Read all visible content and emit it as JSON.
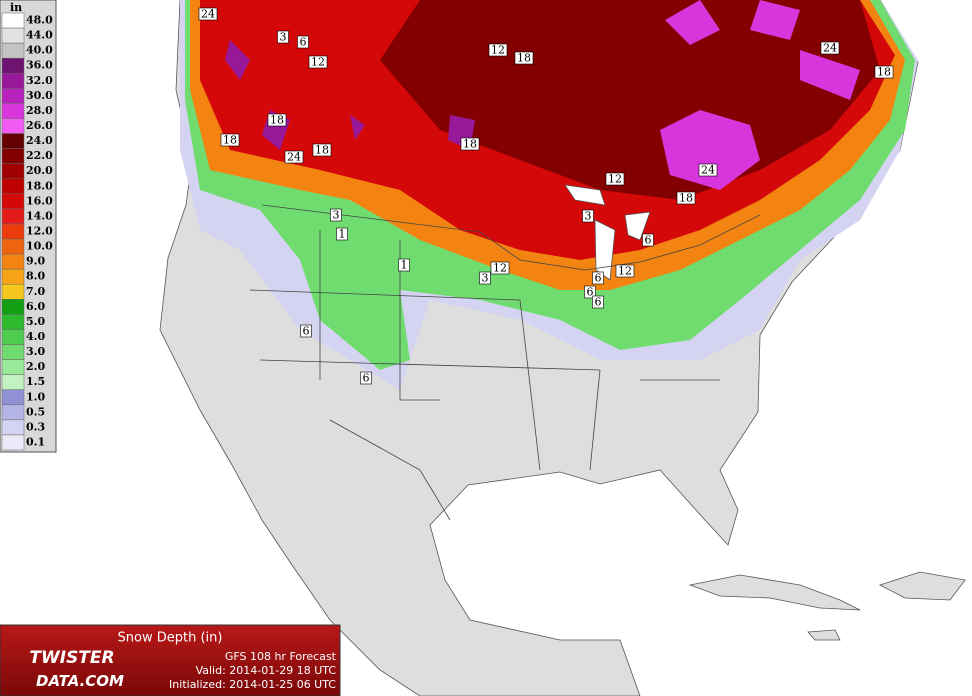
{
  "legend": {
    "unit": "in",
    "levels": [
      {
        "label": "48.0",
        "color": "#ffffff"
      },
      {
        "label": "44.0",
        "color": "#e2e2e2"
      },
      {
        "label": "40.0",
        "color": "#c4c4c4"
      },
      {
        "label": "36.0",
        "color": "#6e1470"
      },
      {
        "label": "32.0",
        "color": "#98189a"
      },
      {
        "label": "30.0",
        "color": "#b822bc"
      },
      {
        "label": "28.0",
        "color": "#d836dc"
      },
      {
        "label": "26.0",
        "color": "#f25cf4"
      },
      {
        "label": "24.0",
        "color": "#640000"
      },
      {
        "label": "22.0",
        "color": "#820000"
      },
      {
        "label": "20.0",
        "color": "#a00000"
      },
      {
        "label": "18.0",
        "color": "#be0000"
      },
      {
        "label": "16.0",
        "color": "#d40808"
      },
      {
        "label": "14.0",
        "color": "#e41a1a"
      },
      {
        "label": "12.0",
        "color": "#ec3c0c"
      },
      {
        "label": "10.0",
        "color": "#f06410"
      },
      {
        "label": "9.0",
        "color": "#f48412"
      },
      {
        "label": "8.0",
        "color": "#f6a416"
      },
      {
        "label": "7.0",
        "color": "#f6c81e"
      },
      {
        "label": "6.0",
        "color": "#12a012"
      },
      {
        "label": "5.0",
        "color": "#2eba2e"
      },
      {
        "label": "4.0",
        "color": "#4ecc4e"
      },
      {
        "label": "3.0",
        "color": "#70dc70"
      },
      {
        "label": "2.0",
        "color": "#98ea98"
      },
      {
        "label": "1.5",
        "color": "#c2f2c2"
      },
      {
        "label": "1.0",
        "color": "#9090d4"
      },
      {
        "label": "0.5",
        "color": "#b4b4e6"
      },
      {
        "label": "0.3",
        "color": "#d4d4f2"
      },
      {
        "label": "0.1",
        "color": "#eaeaf8"
      }
    ]
  },
  "contour_labels": [
    "24",
    "3",
    "6",
    "12",
    "12",
    "18",
    "24",
    "18",
    "18",
    "18",
    "24",
    "18",
    "18",
    "12",
    "24",
    "18",
    "3",
    "3",
    "1",
    "6",
    "1",
    "3",
    "12",
    "12",
    "6",
    "6",
    "6",
    "6",
    "6"
  ],
  "footer": {
    "title": "Snow Depth (in)",
    "forecast": "GFS 108 hr Forecast",
    "valid": "Valid: 2014-01-29 18 UTC",
    "initialized": "Initialized: 2014-01-25 06 UTC",
    "logo_top": "TWISTER",
    "logo_bottom": "DATA.COM"
  }
}
